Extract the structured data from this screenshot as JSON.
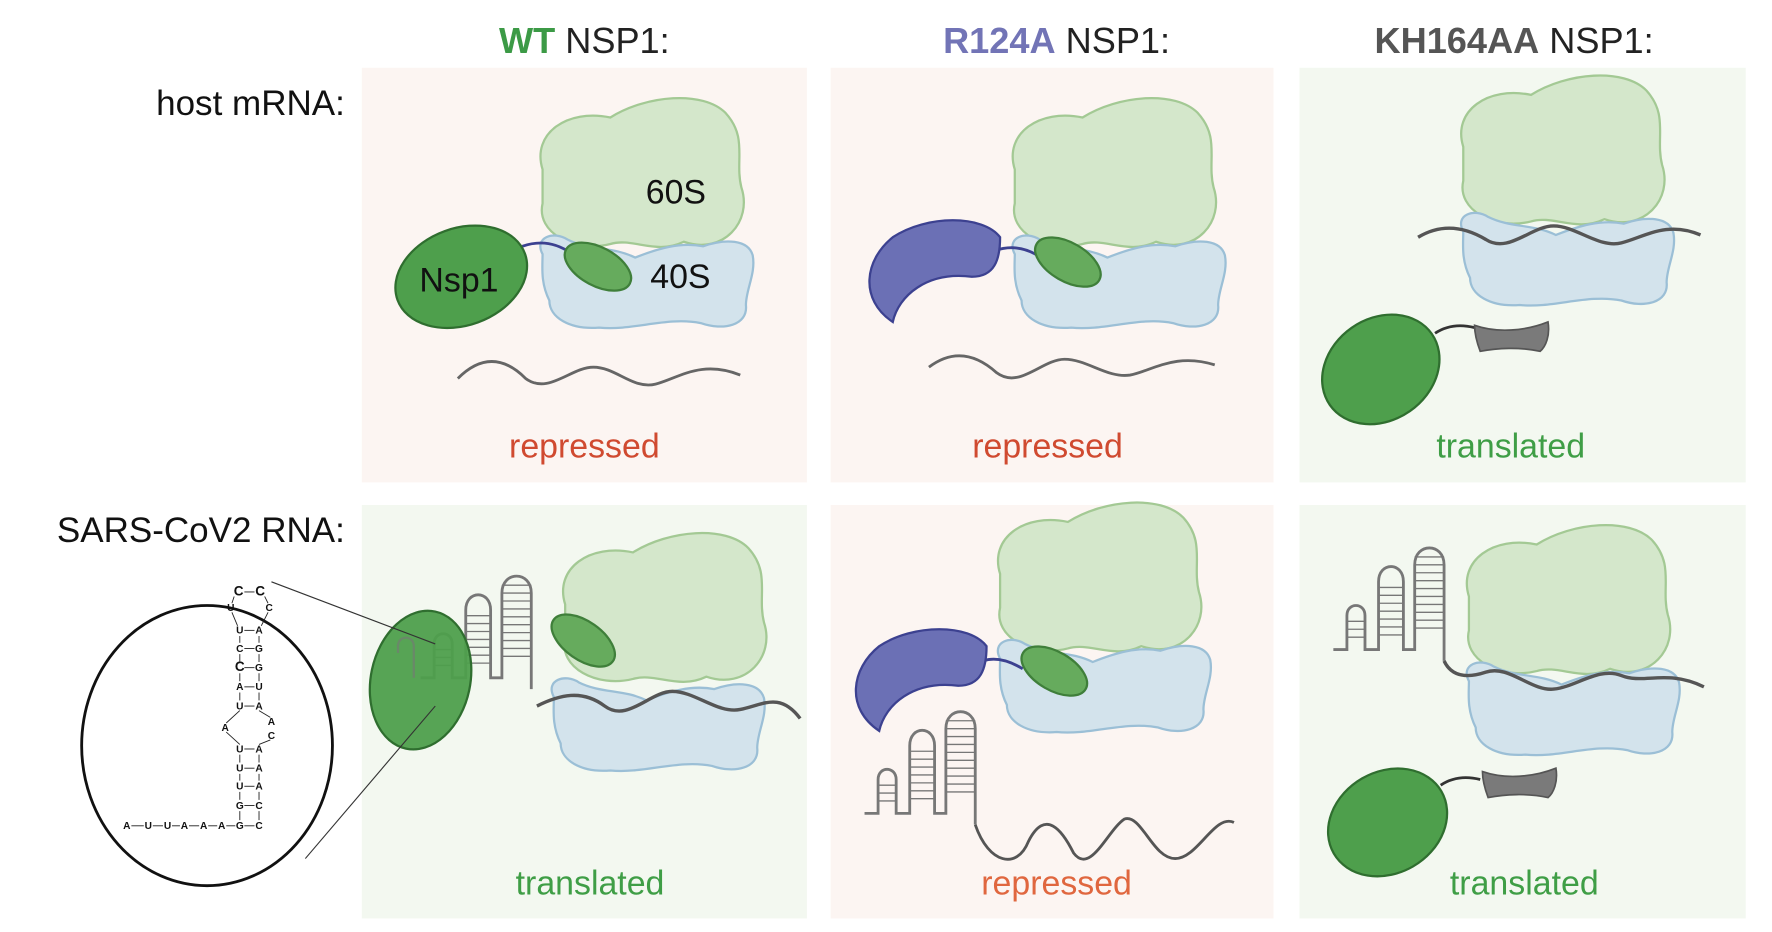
{
  "columns": [
    {
      "mutant": "WT",
      "suffix": " NSP1:",
      "color": "#3c9a46"
    },
    {
      "mutant": "R124A",
      "suffix": " NSP1:",
      "color": "#7274b6"
    },
    {
      "mutant": "KH164AA",
      "suffix": " NSP1:",
      "color": "#555555"
    }
  ],
  "rows": [
    {
      "label": "host mRNA:",
      "outcomes": [
        "repressed",
        "repressed",
        "translated"
      ]
    },
    {
      "label": "SARS-CoV2 RNA:",
      "outcomes": [
        "translated",
        "repressed",
        "translated"
      ]
    }
  ],
  "labels": {
    "s60": "60S",
    "s40": "40S",
    "nsp1": "Nsp1"
  },
  "colors": {
    "repressed": "#d04a30",
    "translated": "#3f9e46",
    "panel_repressed_bg": "#fcf5f2",
    "panel_translated_bg": "#f3f8f0",
    "nsp1": "#4e9f4c",
    "subunit_60s": "#d4e7cb",
    "subunit_40s": "#d3e3ec",
    "crescent": "#6b70b5",
    "highlight_nt": "#d0302a"
  },
  "stem_loop": {
    "loop_top": [
      "C",
      "C"
    ],
    "loop_left": "U",
    "loop_right": "C",
    "pairs_upper": [
      [
        "U",
        "A"
      ],
      [
        "C",
        "G"
      ],
      [
        "C",
        "G"
      ],
      [
        "A",
        "U"
      ],
      [
        "U",
        "A"
      ]
    ],
    "internal_left": [
      "A"
    ],
    "internal_right": [
      "A",
      "C"
    ],
    "pairs_lower": [
      [
        "U",
        "A"
      ],
      [
        "U",
        "A"
      ],
      [
        "U",
        "A"
      ],
      [
        "G",
        "C"
      ]
    ],
    "tail": [
      "A",
      "U",
      "U",
      "A",
      "A",
      "A",
      "G"
    ],
    "tail_pair": "C"
  }
}
